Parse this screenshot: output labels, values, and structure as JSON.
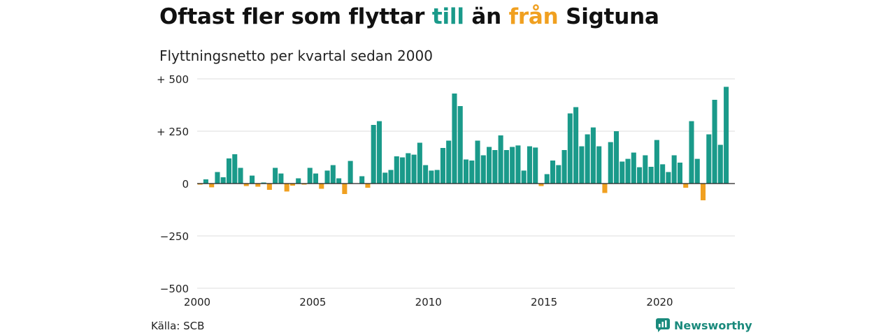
{
  "title": {
    "part1": "Oftast fler som flyttar ",
    "till": "till",
    "part2": " än ",
    "fran": "från",
    "part3": " Sigtuna"
  },
  "subtitle": "Flyttningsnetto per kvartal sedan 2000",
  "source": "Källa: SCB",
  "brand": {
    "name": "Newsworthy",
    "icon": "newsworthy-logo-icon"
  },
  "colors": {
    "positive": "#1a9a8a",
    "negative": "#f0a020",
    "brand": "#1a8a7c"
  },
  "chart_data": {
    "type": "bar",
    "title": "Oftast fler som flyttar till än från Sigtuna",
    "subtitle": "Flyttningsnetto per kvartal sedan 2000",
    "xlim": [
      2000,
      2023.25
    ],
    "ylim": [
      -500,
      500
    ],
    "yticks": [
      500,
      250,
      0,
      -250,
      -500
    ],
    "ytick_labels": [
      "+ 500",
      "+ 250",
      "0",
      "−250",
      "−500"
    ],
    "xticks": [
      2000,
      2005,
      2010,
      2015,
      2020
    ],
    "xtick_labels": [
      "2000",
      "2005",
      "2010",
      "2015",
      "2020"
    ],
    "grid": true,
    "series": [
      {
        "start_year": 2000,
        "values": [
          -5,
          20,
          -18,
          55,
          30,
          120,
          140,
          75,
          -12,
          38,
          -15,
          5,
          -30,
          75,
          48,
          -38,
          -10,
          25,
          -5,
          75,
          48,
          -25,
          62,
          88,
          25,
          -50,
          108,
          0,
          35,
          -20,
          280,
          298,
          52,
          65,
          130,
          125,
          145,
          138,
          195,
          88,
          62,
          65,
          170,
          205,
          430,
          370,
          115,
          110,
          205,
          135,
          175,
          160,
          230,
          160,
          175,
          182,
          62,
          178,
          172,
          -12,
          45,
          110,
          88,
          160,
          335,
          365,
          178,
          235,
          268,
          178,
          -45,
          198,
          250,
          105,
          118,
          148,
          78,
          135,
          80,
          208,
          92,
          55,
          135,
          100,
          -20,
          298,
          118,
          -80,
          235,
          400,
          185,
          462
        ]
      }
    ]
  }
}
